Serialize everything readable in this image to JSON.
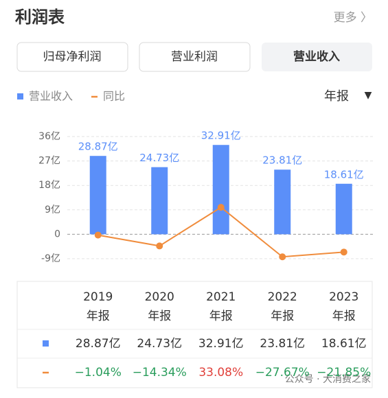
{
  "header": {
    "title": "利润表",
    "more": "更多 〉"
  },
  "tabs": [
    "归母净利润",
    "营业利润",
    "营业收入"
  ],
  "selected_tab": 2,
  "period": "年报",
  "period_arrow": "▼",
  "watermark": "公众号 · 大消费之家",
  "chart_data": {
    "type": "bar_line",
    "categories": [
      "2019",
      "2020",
      "2021",
      "2022",
      "2023"
    ],
    "series": [
      {
        "name": "营业收入",
        "type": "bar",
        "color": "#5b8ff9",
        "values": [
          28.87,
          24.73,
          32.91,
          23.81,
          18.61
        ],
        "value_labels": [
          "28.87亿",
          "24.73亿",
          "32.91亿",
          "23.81亿",
          "18.61亿"
        ]
      },
      {
        "name": "同比",
        "type": "line",
        "color": "#f08c3c",
        "axis": "y2",
        "values": [
          -1.04,
          -14.34,
          33.08,
          -27.67,
          -21.85
        ],
        "value_labels": [
          "−1.04%",
          "−14.34%",
          "33.08%",
          "−27.67%",
          "−21.85%"
        ]
      }
    ],
    "ylim": [
      -9,
      36
    ],
    "yticks": [
      {
        "value": 36,
        "label": "36亿"
      },
      {
        "value": 27,
        "label": "27亿"
      },
      {
        "value": 18,
        "label": "18亿"
      },
      {
        "value": 9,
        "label": "9亿"
      },
      0,
      {
        "value": -9,
        "label": "-9亿"
      }
    ],
    "y2lim": [
      -30,
      120
    ],
    "grid": true,
    "positive_color": "#e0403a",
    "negative_color": "#2a9d5c"
  }
}
